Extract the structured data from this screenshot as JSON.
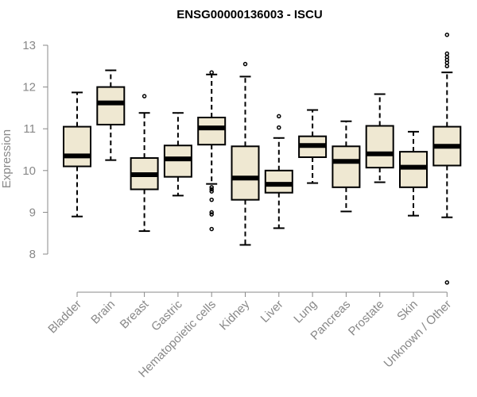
{
  "chart_data": {
    "type": "boxplot",
    "title": "ENSG00000136003 - ISCU",
    "xlabel": "",
    "ylabel": "Expression",
    "ylim": [
      7.2,
      13.4
    ],
    "yticks": [
      8,
      9,
      10,
      11,
      12,
      13
    ],
    "box_color": "#efe8d2",
    "categories": [
      "Bladder",
      "Brain",
      "Breast",
      "Gastric",
      "Hematopoietic cells",
      "Kidney",
      "Liver",
      "Lung",
      "Pancreas",
      "Prostate",
      "Skin",
      "Unknown / Other"
    ],
    "boxes": [
      {
        "name": "Bladder",
        "min": 8.9,
        "q1": 10.1,
        "median": 10.35,
        "q3": 11.05,
        "max": 11.87,
        "outliers": []
      },
      {
        "name": "Brain",
        "min": 10.25,
        "q1": 11.1,
        "median": 11.62,
        "q3": 12.0,
        "max": 12.4,
        "outliers": []
      },
      {
        "name": "Breast",
        "min": 8.55,
        "q1": 9.55,
        "median": 9.9,
        "q3": 10.3,
        "max": 11.38,
        "outliers": [
          11.78
        ]
      },
      {
        "name": "Gastric",
        "min": 9.4,
        "q1": 9.85,
        "median": 10.28,
        "q3": 10.6,
        "max": 11.38,
        "outliers": []
      },
      {
        "name": "Hematopoietic cells",
        "min": 9.68,
        "q1": 10.62,
        "median": 11.02,
        "q3": 11.27,
        "max": 12.3,
        "outliers": [
          12.35,
          9.6,
          9.55,
          9.5,
          9.3,
          9.0,
          8.95,
          8.6
        ]
      },
      {
        "name": "Kidney",
        "min": 8.22,
        "q1": 9.3,
        "median": 9.82,
        "q3": 10.58,
        "max": 12.25,
        "outliers": [
          12.55
        ]
      },
      {
        "name": "Liver",
        "min": 8.62,
        "q1": 9.47,
        "median": 9.67,
        "q3": 10.0,
        "max": 10.78,
        "outliers": [
          11.3,
          11.03
        ]
      },
      {
        "name": "Lung",
        "min": 9.7,
        "q1": 10.32,
        "median": 10.6,
        "q3": 10.82,
        "max": 11.45,
        "outliers": []
      },
      {
        "name": "Pancreas",
        "min": 9.02,
        "q1": 9.6,
        "median": 10.22,
        "q3": 10.58,
        "max": 11.18,
        "outliers": []
      },
      {
        "name": "Prostate",
        "min": 9.72,
        "q1": 10.07,
        "median": 10.4,
        "q3": 11.07,
        "max": 11.83,
        "outliers": []
      },
      {
        "name": "Skin",
        "min": 8.92,
        "q1": 9.6,
        "median": 10.08,
        "q3": 10.45,
        "max": 10.93,
        "outliers": []
      },
      {
        "name": "Unknown / Other",
        "min": 8.88,
        "q1": 10.12,
        "median": 10.58,
        "q3": 11.05,
        "max": 12.35,
        "outliers": [
          13.25,
          12.8,
          12.72,
          12.65,
          12.58,
          12.5,
          7.32
        ]
      }
    ]
  }
}
